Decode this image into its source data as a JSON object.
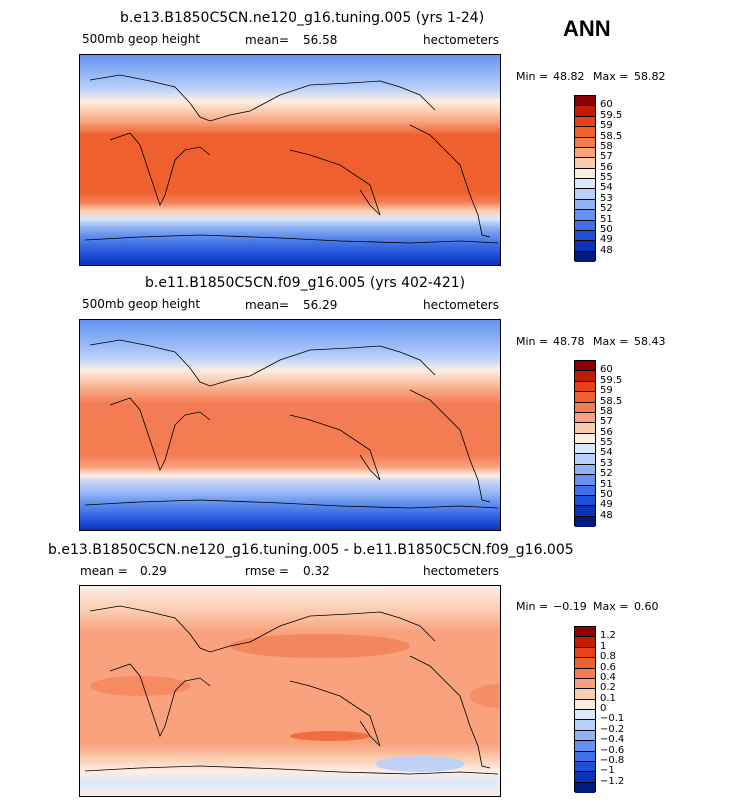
{
  "season": "ANN",
  "colors": {
    "abs_ramp": [
      "#8b0000",
      "#c41a00",
      "#e8401a",
      "#f0602e",
      "#f47c52",
      "#f9a27d",
      "#fbcbae",
      "#fdeee4",
      "#dde8fb",
      "#b9d0fa",
      "#8fb3f5",
      "#6592ee",
      "#3f70e6",
      "#1f4fd8",
      "#0a33b8",
      "#001a80"
    ],
    "diff_ramp": [
      "#8b0000",
      "#c41a00",
      "#e8401a",
      "#f0602e",
      "#f47c52",
      "#f9a27d",
      "#fbcbae",
      "#fdeee4",
      "#dde8fb",
      "#b9d0fa",
      "#8fb3f5",
      "#6592ee",
      "#3f70e6",
      "#1f4fd8",
      "#0a33b8",
      "#001a80"
    ]
  },
  "panels": [
    {
      "id": "top",
      "title": "b.e13.B1850C5CN.ne120_g16.tuning.005 (yrs 1-24)",
      "left_label": "500mb geop height",
      "stat1_label": "mean=",
      "stat1_value": "56.58",
      "units": "hectometers",
      "min_label": "Min =",
      "min_value": "48.82",
      "max_label": "Max =",
      "max_value": "58.82",
      "levels": [
        "60",
        "59.5",
        "59",
        "58.5",
        "58",
        "57",
        "56",
        "55",
        "54",
        "53",
        "52",
        "51",
        "50",
        "49",
        "48"
      ]
    },
    {
      "id": "middle",
      "title": "b.e11.B1850C5CN.f09_g16.005 (yrs 402-421)",
      "left_label": "500mb geop height",
      "stat1_label": "mean=",
      "stat1_value": "56.29",
      "units": "hectometers",
      "min_label": "Min =",
      "min_value": "48.78",
      "max_label": "Max =",
      "max_value": "58.43",
      "levels": [
        "60",
        "59.5",
        "59",
        "58.5",
        "58",
        "57",
        "56",
        "55",
        "54",
        "53",
        "52",
        "51",
        "50",
        "49",
        "48"
      ]
    },
    {
      "id": "bottom",
      "title": "b.e13.B1850C5CN.ne120_g16.tuning.005 - b.e11.B1850C5CN.f09_g16.005",
      "left_label": "mean =",
      "left_value": "0.29",
      "stat1_label": "rmse =",
      "stat1_value": "0.32",
      "units": "hectometers",
      "min_label": "Min =",
      "min_value": "−0.19",
      "max_label": "Max =",
      "max_value": "0.60",
      "levels": [
        "1.2",
        "1",
        "0.8",
        "0.6",
        "0.4",
        "0.2",
        "0.1",
        "0",
        "−0.1",
        "−0.2",
        "−0.4",
        "−0.6",
        "−0.8",
        "−1",
        "−1.2"
      ]
    }
  ]
}
